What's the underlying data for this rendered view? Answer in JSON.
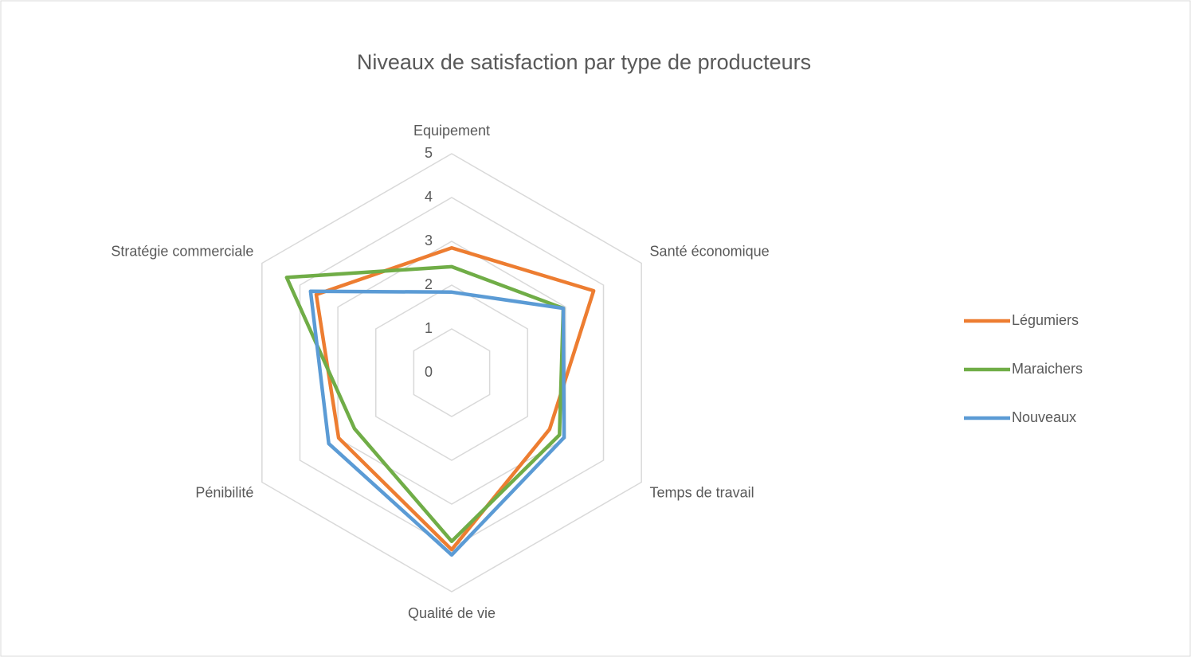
{
  "chart_data": {
    "type": "radar",
    "title": "Niveaux de satisfaction par type de producteurs",
    "categories": [
      "Equipement",
      "Santé économique",
      "Temps de travail",
      "Qualité de vie",
      "Pénibilité",
      "Stratégie commerciale"
    ],
    "series": [
      {
        "name": "Légumiers",
        "color": "#ed7d31",
        "values": [
          2.85,
          3.74,
          2.58,
          4.04,
          2.98,
          3.57
        ]
      },
      {
        "name": "Maraichers",
        "color": "#70ad47",
        "values": [
          2.42,
          2.94,
          2.84,
          3.85,
          2.56,
          4.35
        ]
      },
      {
        "name": "Nouveaux",
        "color": "#5b9bd5",
        "values": [
          1.84,
          2.94,
          2.96,
          4.16,
          3.24,
          3.72
        ]
      }
    ],
    "ylim": [
      0,
      5
    ],
    "yticks": [
      0,
      1,
      2,
      3,
      4,
      5
    ],
    "grid": true,
    "legend": "right"
  }
}
